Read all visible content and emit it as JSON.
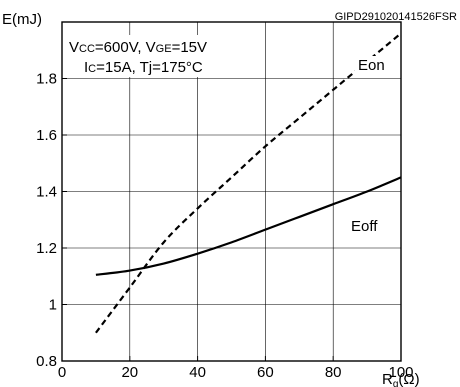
{
  "figure_code": "GIPD291020141526FSR",
  "chart_data": {
    "type": "line",
    "ylabel": "E(mJ)",
    "xlabel_main": "R",
    "xlabel_sub": "g",
    "xlabel_unit": "(Ω)",
    "xlim": [
      0,
      100
    ],
    "ylim": [
      0.8,
      2.0
    ],
    "xticks": [
      0,
      20,
      40,
      60,
      80,
      100
    ],
    "yticks": [
      0.8,
      1.0,
      1.2,
      1.4,
      1.6,
      1.8
    ],
    "ytick_labels": [
      "0.8",
      "1",
      "1.2",
      "1.4",
      "1.6",
      "1.8"
    ],
    "grid": true,
    "conditions": {
      "line1": [
        {
          "t": "V",
          "sub": false
        },
        {
          "t": "CC",
          "sub": true
        },
        {
          "t": "=600V, V",
          "sub": false
        },
        {
          "t": "GE",
          "sub": true
        },
        {
          "t": "=15V",
          "sub": false
        }
      ],
      "line2": [
        {
          "t": "I",
          "sub": false
        },
        {
          "t": "C",
          "sub": true
        },
        {
          "t": "=15A, Tj=175°C",
          "sub": false
        }
      ]
    },
    "series": [
      {
        "name": "Eon",
        "style": "dashed",
        "x": [
          10,
          20,
          30,
          40,
          50,
          60,
          70,
          80,
          90,
          100
        ],
        "y": [
          0.9,
          1.06,
          1.22,
          1.34,
          1.45,
          1.56,
          1.66,
          1.76,
          1.86,
          1.96
        ]
      },
      {
        "name": "Eoff",
        "style": "solid",
        "x": [
          10,
          20,
          30,
          40,
          50,
          60,
          70,
          80,
          90,
          100
        ],
        "y": [
          1.105,
          1.12,
          1.145,
          1.18,
          1.22,
          1.265,
          1.31,
          1.355,
          1.4,
          1.45
        ]
      }
    ]
  }
}
